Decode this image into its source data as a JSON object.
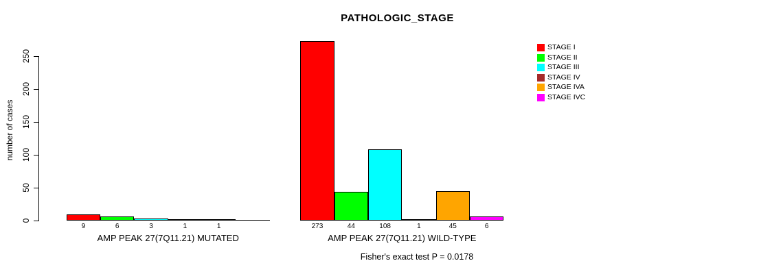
{
  "chart_data": {
    "type": "bar",
    "title": "PATHOLOGIC_STAGE",
    "ylabel": "number of cases",
    "xlabel": "",
    "ylim": [
      0,
      250
    ],
    "yticks": [
      0,
      50,
      100,
      150,
      200,
      250
    ],
    "grid": false,
    "legend_position": "right",
    "categories": [
      "AMP PEAK 27(7Q11.21) MUTATED",
      "AMP PEAK 27(7Q11.21) WILD-TYPE"
    ],
    "series": [
      {
        "name": "STAGE I",
        "color": "#FF0000",
        "values": [
          9,
          273
        ]
      },
      {
        "name": "STAGE II",
        "color": "#00FF00",
        "values": [
          6,
          44
        ]
      },
      {
        "name": "STAGE III",
        "color": "#00FFFF",
        "values": [
          3,
          108
        ]
      },
      {
        "name": "STAGE IV",
        "color": "#A52A2A",
        "values": [
          1,
          1
        ]
      },
      {
        "name": "STAGE IVA",
        "color": "#FFA500",
        "values": [
          1,
          45
        ]
      },
      {
        "name": "STAGE IVC",
        "color": "#FF00FF",
        "values": [
          0,
          6
        ]
      }
    ],
    "bar_value_labels": [
      [
        "9",
        "6",
        "3",
        "1",
        "1",
        ""
      ],
      [
        "273",
        "44",
        "108",
        "1",
        "45",
        "6"
      ]
    ],
    "annotation": "Fisher's exact test P = 0.0178"
  }
}
